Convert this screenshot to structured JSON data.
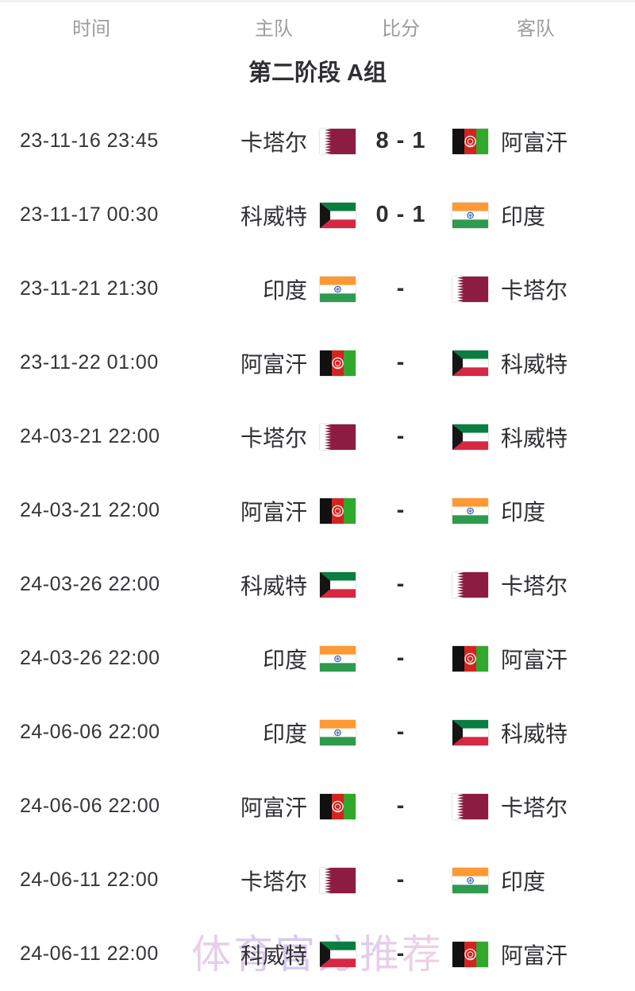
{
  "header": {
    "columns": [
      "时间",
      "主队",
      "比分",
      "客队"
    ]
  },
  "section_title": "第二阶段 A组",
  "watermark": {
    "text": "体育官方推荐"
  },
  "colors": {
    "text": "#2f2f34",
    "header_text": "#9c9ca1",
    "watermark_pink": "#f3b9d2",
    "watermark_purple": "#b9a6e6",
    "flags": {
      "white": "#ffffff",
      "qatar_maroon": "#8d1c42",
      "afghan_black": "#111111",
      "afghan_red": "#d42420",
      "afghan_green": "#31a82c",
      "kuwait_green": "#0a7d40",
      "kuwait_white": "#ffffff",
      "kuwait_red": "#d62744",
      "kuwait_black": "#151515",
      "india_saffron": "#ff9933",
      "india_white": "#ffffff",
      "india_green": "#2e9b4e",
      "india_navy": "#174ba0"
    }
  },
  "matches": [
    {
      "time": "23-11-16 23:45",
      "home": "卡塔尔",
      "home_flag": "qatar",
      "score": "8 - 1",
      "away": "阿富汗",
      "away_flag": "afghanistan"
    },
    {
      "time": "23-11-17 00:30",
      "home": "科威特",
      "home_flag": "kuwait",
      "score": "0 - 1",
      "away": "印度",
      "away_flag": "india"
    },
    {
      "time": "23-11-21 21:30",
      "home": "印度",
      "home_flag": "india",
      "score": "-",
      "away": "卡塔尔",
      "away_flag": "qatar"
    },
    {
      "time": "23-11-22 01:00",
      "home": "阿富汗",
      "home_flag": "afghanistan",
      "score": "-",
      "away": "科威特",
      "away_flag": "kuwait"
    },
    {
      "time": "24-03-21 22:00",
      "home": "卡塔尔",
      "home_flag": "qatar",
      "score": "-",
      "away": "科威特",
      "away_flag": "kuwait"
    },
    {
      "time": "24-03-21 22:00",
      "home": "阿富汗",
      "home_flag": "afghanistan",
      "score": "-",
      "away": "印度",
      "away_flag": "india"
    },
    {
      "time": "24-03-26 22:00",
      "home": "科威特",
      "home_flag": "kuwait",
      "score": "-",
      "away": "卡塔尔",
      "away_flag": "qatar"
    },
    {
      "time": "24-03-26 22:00",
      "home": "印度",
      "home_flag": "india",
      "score": "-",
      "away": "阿富汗",
      "away_flag": "afghanistan"
    },
    {
      "time": "24-06-06 22:00",
      "home": "印度",
      "home_flag": "india",
      "score": "-",
      "away": "科威特",
      "away_flag": "kuwait"
    },
    {
      "time": "24-06-06 22:00",
      "home": "阿富汗",
      "home_flag": "afghanistan",
      "score": "-",
      "away": "卡塔尔",
      "away_flag": "qatar"
    },
    {
      "time": "24-06-11 22:00",
      "home": "卡塔尔",
      "home_flag": "qatar",
      "score": "-",
      "away": "印度",
      "away_flag": "india"
    },
    {
      "time": "24-06-11 22:00",
      "home": "科威特",
      "home_flag": "kuwait",
      "score": "-",
      "away": "阿富汗",
      "away_flag": "afghanistan"
    }
  ]
}
